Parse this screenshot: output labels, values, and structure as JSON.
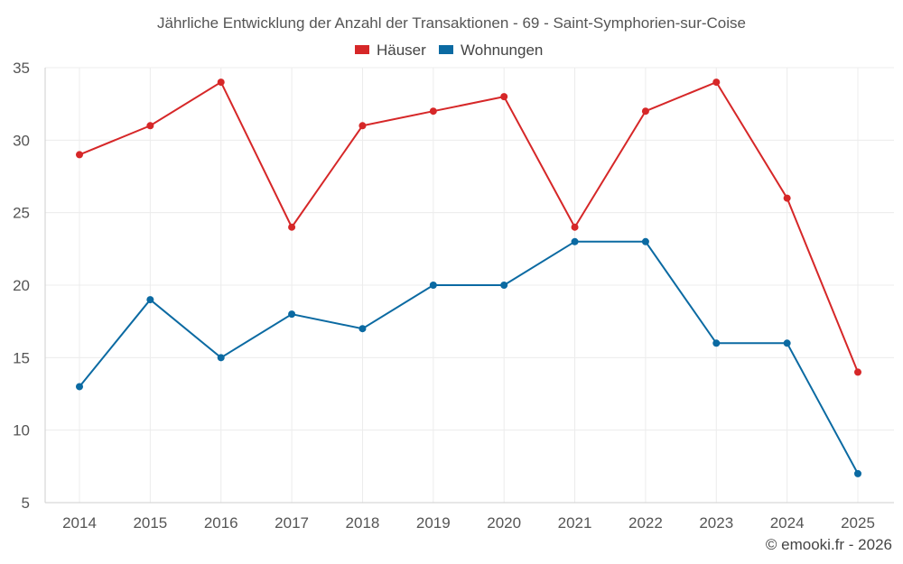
{
  "chart_data": {
    "type": "line",
    "title": "Jährliche Entwicklung der Anzahl der Transaktionen - 69 - Saint-Symphorien-sur-Coise",
    "categories": [
      "2014",
      "2015",
      "2016",
      "2017",
      "2018",
      "2019",
      "2020",
      "2021",
      "2022",
      "2023",
      "2024",
      "2025"
    ],
    "series": [
      {
        "name": "Häuser",
        "color": "#d62728",
        "values": [
          29,
          31,
          34,
          24,
          31,
          32,
          33,
          24,
          32,
          34,
          26,
          14
        ]
      },
      {
        "name": "Wohnungen",
        "color": "#0b6aa2",
        "values": [
          13,
          19,
          15,
          18,
          17,
          20,
          20,
          23,
          23,
          16,
          16,
          7
        ]
      }
    ],
    "ylim": [
      5,
      35
    ],
    "yticks": [
      "5",
      "10",
      "15",
      "20",
      "25",
      "30",
      "35"
    ],
    "xlabel": "",
    "ylabel": "",
    "grid": true,
    "legend_position": "top-center"
  },
  "credit": "© emooki.fr - 2026"
}
